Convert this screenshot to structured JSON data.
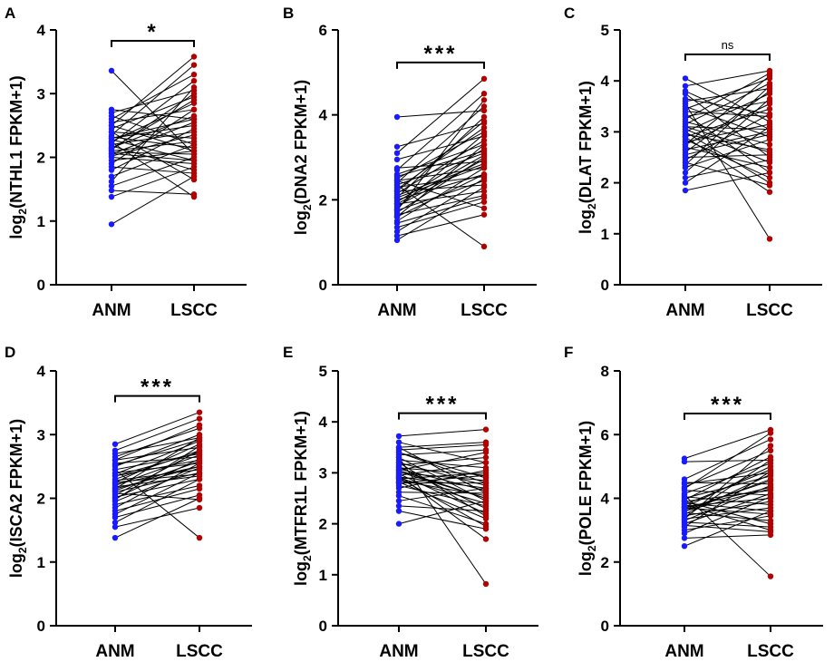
{
  "colors": {
    "anm": "#1a1aff",
    "lscc": "#b30000",
    "line": "#000000"
  },
  "chart_data": [
    {
      "panel": "A",
      "type": "scatter",
      "subtype": "paired-dot",
      "ylabel_pre": "log",
      "ylabel_sub": "2",
      "ylabel_post": "(NTHL1 FPKM+1)",
      "categories": [
        "ANM",
        "LSCC"
      ],
      "ylim": [
        0,
        4
      ],
      "yticks": [
        "0",
        "1",
        "2",
        "3",
        "4"
      ],
      "significance": "*",
      "pairs": [
        [
          3.36,
          2.05
        ],
        [
          2.75,
          2.6
        ],
        [
          2.7,
          3.05
        ],
        [
          2.65,
          2.2
        ],
        [
          2.6,
          3.3
        ],
        [
          2.55,
          2.75
        ],
        [
          2.5,
          2.1
        ],
        [
          2.5,
          3.58
        ],
        [
          2.45,
          2.95
        ],
        [
          2.4,
          2.3
        ],
        [
          2.35,
          3.45
        ],
        [
          2.32,
          2.15
        ],
        [
          2.3,
          2.5
        ],
        [
          2.28,
          1.95
        ],
        [
          2.25,
          2.85
        ],
        [
          2.22,
          3.2
        ],
        [
          2.2,
          2.4
        ],
        [
          2.18,
          1.8
        ],
        [
          2.15,
          2.65
        ],
        [
          2.12,
          3.0
        ],
        [
          2.1,
          2.25
        ],
        [
          2.08,
          2.05
        ],
        [
          2.05,
          2.55
        ],
        [
          2.02,
          2.35
        ],
        [
          2.0,
          1.9
        ],
        [
          1.95,
          2.1
        ],
        [
          1.9,
          2.75
        ],
        [
          1.85,
          1.75
        ],
        [
          1.8,
          2.45
        ],
        [
          1.7,
          2.2
        ],
        [
          1.62,
          3.1
        ],
        [
          1.55,
          2.0
        ],
        [
          1.48,
          1.42
        ],
        [
          1.38,
          1.85
        ],
        [
          0.95,
          1.7
        ],
        [
          2.24,
          1.38
        ],
        [
          2.14,
          2.9
        ],
        [
          2.06,
          1.95
        ],
        [
          2.3,
          2.6
        ],
        [
          2.4,
          1.65
        ]
      ]
    },
    {
      "panel": "B",
      "type": "scatter",
      "subtype": "paired-dot",
      "ylabel_pre": "log",
      "ylabel_sub": "2",
      "ylabel_post": "(DNA2 FPKM+1)",
      "categories": [
        "ANM",
        "LSCC"
      ],
      "ylim": [
        0,
        6
      ],
      "yticks": [
        "0",
        "2",
        "4",
        "6"
      ],
      "significance": "***",
      "pairs": [
        [
          3.95,
          4.1
        ],
        [
          3.25,
          3.8
        ],
        [
          3.1,
          4.85
        ],
        [
          2.95,
          3.5
        ],
        [
          2.75,
          2.9
        ],
        [
          2.7,
          4.5
        ],
        [
          2.6,
          3.3
        ],
        [
          2.5,
          3.6
        ],
        [
          2.45,
          2.75
        ],
        [
          2.4,
          4.2
        ],
        [
          2.35,
          3.1
        ],
        [
          2.3,
          2.55
        ],
        [
          2.25,
          3.7
        ],
        [
          2.2,
          2.35
        ],
        [
          2.15,
          3.4
        ],
        [
          2.1,
          2.85
        ],
        [
          2.05,
          3.95
        ],
        [
          2.0,
          2.6
        ],
        [
          1.95,
          3.2
        ],
        [
          1.9,
          2.2
        ],
        [
          1.85,
          2.95
        ],
        [
          1.8,
          3.55
        ],
        [
          1.75,
          2.45
        ],
        [
          1.7,
          3.0
        ],
        [
          1.65,
          2.1
        ],
        [
          1.6,
          3.3
        ],
        [
          1.5,
          2.75
        ],
        [
          1.45,
          2.05
        ],
        [
          1.35,
          1.95
        ],
        [
          1.25,
          2.5
        ],
        [
          1.15,
          1.65
        ],
        [
          1.05,
          2.3
        ],
        [
          2.35,
          0.9
        ],
        [
          2.2,
          3.85
        ],
        [
          2.05,
          2.8
        ],
        [
          1.9,
          3.05
        ],
        [
          1.75,
          4.35
        ],
        [
          1.6,
          2.6
        ],
        [
          2.55,
          3.15
        ],
        [
          2.45,
          1.8
        ]
      ]
    },
    {
      "panel": "C",
      "type": "scatter",
      "subtype": "paired-dot",
      "ylabel_pre": "log",
      "ylabel_sub": "2",
      "ylabel_post": "(DLAT FPKM+1)",
      "categories": [
        "ANM",
        "LSCC"
      ],
      "ylim": [
        0,
        5
      ],
      "yticks": [
        "0",
        "1",
        "2",
        "3",
        "4",
        "5"
      ],
      "significance": "ns",
      "pairs": [
        [
          4.05,
          3.2
        ],
        [
          3.9,
          4.2
        ],
        [
          3.75,
          2.5
        ],
        [
          3.6,
          3.85
        ],
        [
          3.5,
          2.9
        ],
        [
          3.45,
          4.05
        ],
        [
          3.4,
          3.3
        ],
        [
          3.35,
          2.2
        ],
        [
          3.3,
          3.6
        ],
        [
          3.2,
          2.75
        ],
        [
          3.15,
          3.95
        ],
        [
          3.1,
          3.05
        ],
        [
          3.05,
          2.4
        ],
        [
          3.0,
          3.75
        ],
        [
          2.95,
          2.65
        ],
        [
          2.9,
          3.45
        ],
        [
          2.85,
          2.1
        ],
        [
          2.8,
          3.15
        ],
        [
          2.75,
          3.55
        ],
        [
          2.7,
          2.3
        ],
        [
          2.65,
          3.0
        ],
        [
          2.6,
          3.8
        ],
        [
          2.5,
          2.55
        ],
        [
          2.45,
          3.35
        ],
        [
          2.4,
          1.95
        ],
        [
          2.3,
          2.85
        ],
        [
          2.2,
          3.65
        ],
        [
          2.1,
          2.45
        ],
        [
          2.0,
          3.1
        ],
        [
          1.85,
          2.2
        ],
        [
          3.55,
          0.9
        ],
        [
          2.9,
          1.82
        ],
        [
          3.25,
          4.15
        ],
        [
          2.55,
          2.95
        ],
        [
          3.65,
          3.35
        ],
        [
          2.35,
          3.9
        ],
        [
          3.0,
          2.0
        ],
        [
          3.8,
          3.05
        ],
        [
          2.75,
          4.1
        ],
        [
          3.1,
          2.6
        ]
      ]
    },
    {
      "panel": "D",
      "type": "scatter",
      "subtype": "paired-dot",
      "ylabel_pre": "log",
      "ylabel_sub": "2",
      "ylabel_post": "(ISCA2 FPKM+1)",
      "categories": [
        "ANM",
        "LSCC"
      ],
      "ylim": [
        0,
        4
      ],
      "yticks": [
        "0",
        "1",
        "2",
        "3",
        "4"
      ],
      "significance": "***",
      "pairs": [
        [
          2.85,
          3.35
        ],
        [
          2.75,
          3.25
        ],
        [
          2.7,
          2.95
        ],
        [
          2.65,
          3.1
        ],
        [
          2.6,
          2.8
        ],
        [
          2.55,
          2.65
        ],
        [
          2.5,
          3.0
        ],
        [
          2.45,
          2.7
        ],
        [
          2.4,
          2.55
        ],
        [
          2.38,
          2.9
        ],
        [
          2.35,
          2.6
        ],
        [
          2.3,
          2.75
        ],
        [
          2.28,
          2.45
        ],
        [
          2.25,
          2.85
        ],
        [
          2.22,
          2.5
        ],
        [
          2.2,
          2.68
        ],
        [
          2.18,
          2.35
        ],
        [
          2.15,
          2.95
        ],
        [
          2.12,
          2.58
        ],
        [
          2.1,
          2.4
        ],
        [
          2.05,
          2.75
        ],
        [
          2.02,
          2.3
        ],
        [
          2.0,
          2.62
        ],
        [
          1.95,
          2.48
        ],
        [
          1.9,
          2.2
        ],
        [
          1.85,
          2.55
        ],
        [
          1.8,
          2.15
        ],
        [
          1.75,
          2.4
        ],
        [
          1.7,
          2.05
        ],
        [
          1.62,
          2.3
        ],
        [
          1.55,
          1.85
        ],
        [
          1.38,
          2.0
        ],
        [
          2.45,
          1.38
        ],
        [
          2.6,
          3.15
        ],
        [
          2.35,
          2.72
        ],
        [
          2.15,
          2.5
        ],
        [
          1.98,
          2.82
        ],
        [
          2.25,
          2.38
        ],
        [
          2.52,
          2.92
        ],
        [
          2.08,
          1.98
        ]
      ]
    },
    {
      "panel": "E",
      "type": "scatter",
      "subtype": "paired-dot",
      "ylabel_pre": "log",
      "ylabel_sub": "2",
      "ylabel_post": "(MTFR1L FPKM+1)",
      "categories": [
        "ANM",
        "LSCC"
      ],
      "ylim": [
        0,
        5
      ],
      "yticks": [
        "0",
        "1",
        "2",
        "3",
        "4",
        "5"
      ],
      "significance": "***",
      "pairs": [
        [
          3.72,
          3.85
        ],
        [
          3.6,
          3.2
        ],
        [
          3.5,
          2.6
        ],
        [
          3.45,
          3.55
        ],
        [
          3.4,
          2.9
        ],
        [
          3.35,
          3.45
        ],
        [
          3.3,
          2.45
        ],
        [
          3.25,
          3.1
        ],
        [
          3.2,
          2.75
        ],
        [
          3.15,
          3.3
        ],
        [
          3.12,
          2.3
        ],
        [
          3.1,
          2.95
        ],
        [
          3.08,
          2.65
        ],
        [
          3.05,
          3.4
        ],
        [
          3.02,
          2.5
        ],
        [
          3.0,
          2.85
        ],
        [
          2.98,
          2.2
        ],
        [
          2.95,
          3.2
        ],
        [
          2.92,
          2.7
        ],
        [
          2.9,
          2.4
        ],
        [
          2.88,
          3.0
        ],
        [
          2.85,
          2.55
        ],
        [
          2.82,
          2.1
        ],
        [
          2.8,
          2.8
        ],
        [
          2.75,
          2.35
        ],
        [
          2.7,
          3.05
        ],
        [
          2.62,
          2.6
        ],
        [
          2.55,
          2.0
        ],
        [
          2.45,
          2.7
        ],
        [
          2.35,
          2.25
        ],
        [
          2.25,
          1.9
        ],
        [
          2.0,
          2.45
        ],
        [
          3.3,
          0.82
        ],
        [
          2.95,
          1.7
        ],
        [
          3.5,
          3.6
        ],
        [
          3.2,
          2.15
        ],
        [
          2.8,
          2.95
        ],
        [
          3.05,
          2.5
        ],
        [
          3.4,
          2.8
        ],
        [
          2.9,
          1.95
        ]
      ]
    },
    {
      "panel": "F",
      "type": "scatter",
      "subtype": "paired-dot",
      "ylabel_pre": "log",
      "ylabel_sub": "2",
      "ylabel_post": "(POLE FPKM+1)",
      "categories": [
        "ANM",
        "LSCC"
      ],
      "ylim": [
        0,
        8
      ],
      "yticks": [
        "0",
        "2",
        "4",
        "6",
        "8"
      ],
      "significance": "***",
      "pairs": [
        [
          5.25,
          6.15
        ],
        [
          5.15,
          5.2
        ],
        [
          4.6,
          5.85
        ],
        [
          4.5,
          4.45
        ],
        [
          4.35,
          5.5
        ],
        [
          4.25,
          4.1
        ],
        [
          4.15,
          5.1
        ],
        [
          4.05,
          3.8
        ],
        [
          4.0,
          4.7
        ],
        [
          3.95,
          5.3
        ],
        [
          3.9,
          4.25
        ],
        [
          3.85,
          3.6
        ],
        [
          3.8,
          4.9
        ],
        [
          3.75,
          4.0
        ],
        [
          3.72,
          5.0
        ],
        [
          3.7,
          3.5
        ],
        [
          3.65,
          4.55
        ],
        [
          3.6,
          4.3
        ],
        [
          3.55,
          3.3
        ],
        [
          3.5,
          4.75
        ],
        [
          3.45,
          3.9
        ],
        [
          3.4,
          5.2
        ],
        [
          3.35,
          3.7
        ],
        [
          3.3,
          4.4
        ],
        [
          3.25,
          3.1
        ],
        [
          3.2,
          4.15
        ],
        [
          3.1,
          4.85
        ],
        [
          3.0,
          3.45
        ],
        [
          2.9,
          4.05
        ],
        [
          2.75,
          2.85
        ],
        [
          2.5,
          3.6
        ],
        [
          4.1,
          1.55
        ],
        [
          3.8,
          3.0
        ],
        [
          4.3,
          6.05
        ],
        [
          3.6,
          4.6
        ],
        [
          3.35,
          5.65
        ],
        [
          3.9,
          3.2
        ],
        [
          4.45,
          4.8
        ],
        [
          3.15,
          2.95
        ],
        [
          3.7,
          4.35
        ]
      ]
    }
  ]
}
